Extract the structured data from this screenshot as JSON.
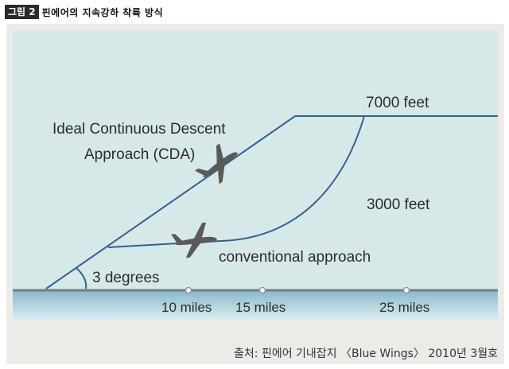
{
  "figure": {
    "number": "그림 2",
    "caption": "핀에어의 지속강하 착륙 방식",
    "source": "출처: 핀에어 기내잡지 〈Blue Wings〉 2010년 3월호"
  },
  "labels": {
    "altitude_high": "7000 feet",
    "altitude_low": "3000 feet",
    "cda_line1": "Ideal Continuous Descent",
    "cda_line2": "Approach (CDA)",
    "conventional": "conventional approach",
    "angle": "3 degrees"
  },
  "distances": [
    "10 miles",
    "15 miles",
    "25 miles"
  ],
  "colors": {
    "path": "#35608f",
    "sky": "#d6e9e8",
    "ground_top": "#8ab8c9",
    "ground_bottom": "#dbeef3",
    "plane": "#5a5a5a"
  }
}
